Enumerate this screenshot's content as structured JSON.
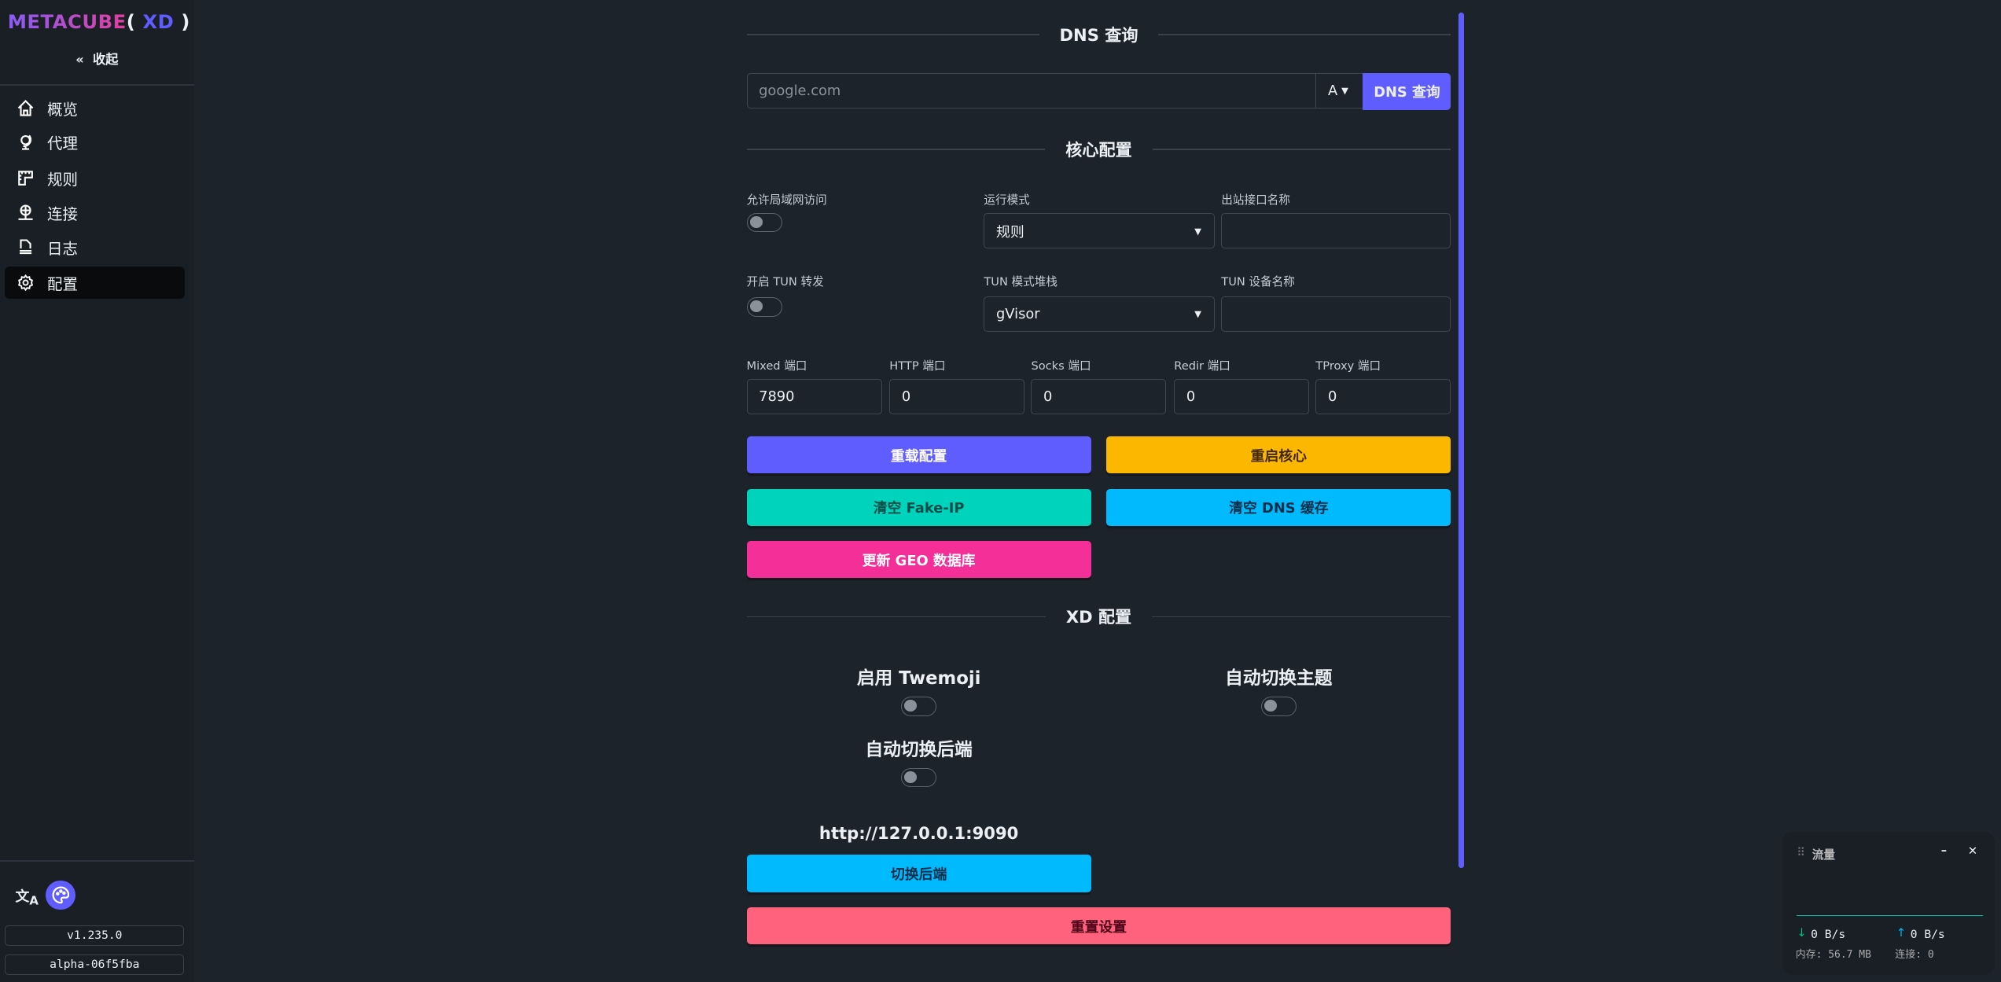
{
  "logo": {
    "part1": "METACUBE",
    "open": "(",
    "part2": " XD ",
    "close": ")"
  },
  "sidebar": {
    "collapse_label": "收起",
    "items": [
      {
        "label": "概览",
        "icon": "home-icon"
      },
      {
        "label": "代理",
        "icon": "globe-stand-icon"
      },
      {
        "label": "规则",
        "icon": "ruler-icon"
      },
      {
        "label": "连接",
        "icon": "network-icon"
      },
      {
        "label": "日志",
        "icon": "document-icon"
      },
      {
        "label": "配置",
        "icon": "gear-icon",
        "active": true
      }
    ],
    "version": "v1.235.0",
    "build": "alpha-06f5fba"
  },
  "dns": {
    "title": "DNS 查询",
    "placeholder": "google.com",
    "type": "A",
    "button": "DNS 查询"
  },
  "core": {
    "title": "核心配置",
    "allow_lan": "允许局域网访问",
    "mode_label": "运行模式",
    "mode_value": "规则",
    "iface_label": "出站接口名称",
    "tun_label": "开启 TUN 转发",
    "stack_label": "TUN 模式堆栈",
    "stack_value": "gVisor",
    "tun_dev_label": "TUN 设备名称",
    "ports": [
      {
        "label": "Mixed 端口",
        "value": "7890"
      },
      {
        "label": "HTTP 端口",
        "value": "0"
      },
      {
        "label": "Socks 端口",
        "value": "0"
      },
      {
        "label": "Redir 端口",
        "value": "0"
      },
      {
        "label": "TProxy 端口",
        "value": "0"
      }
    ],
    "reload": "重载配置",
    "restart": "重启核心",
    "flush_fakeip": "清空 Fake-IP",
    "flush_dns": "清空 DNS 缓存",
    "update_geo": "更新 GEO 数据库"
  },
  "xd": {
    "title": "XD 配置",
    "twemoji": "启用 Twemoji",
    "auto_theme": "自动切换主题",
    "auto_backend": "自动切换后端",
    "backend_url": "http://127.0.0.1:9090",
    "switch_backend": "切换后端",
    "reset": "重置设置"
  },
  "traffic": {
    "title": "流量",
    "down": "0 B/s",
    "up": "0 B/s",
    "memory": "内存: 56.7 MB",
    "connections": "连接: 0"
  },
  "colors": {
    "primary": "#605dff",
    "warning": "#fcb700",
    "accent": "#00d3bb",
    "info": "#00bafe",
    "secondary": "#f43098",
    "error": "#ff627d"
  }
}
